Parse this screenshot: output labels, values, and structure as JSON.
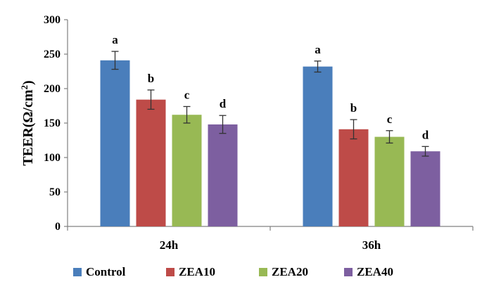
{
  "chart_data": {
    "type": "bar",
    "title": "",
    "xlabel": "",
    "ylabel": "TEER(Ω/cm²)",
    "ylabel_main": "TEER(Ω/cm",
    "ylabel_sup": "2",
    "ylabel_close": ")",
    "ylim": [
      0,
      300
    ],
    "yticks": [
      0,
      50,
      100,
      150,
      200,
      250,
      300
    ],
    "categories": [
      "24h",
      "36h"
    ],
    "series": [
      {
        "name": "Control",
        "color": "#4a7ebb",
        "values": [
          241,
          232
        ],
        "errors": [
          13,
          8
        ],
        "labels": [
          "a",
          "a"
        ]
      },
      {
        "name": "ZEA10",
        "color": "#be4b48",
        "values": [
          184,
          141
        ],
        "errors": [
          14,
          14
        ],
        "labels": [
          "b",
          "b"
        ]
      },
      {
        "name": "ZEA20",
        "color": "#98b954",
        "values": [
          162,
          130
        ],
        "errors": [
          12,
          9
        ],
        "labels": [
          "c",
          "c"
        ]
      },
      {
        "name": "ZEA40",
        "color": "#7d5fa0",
        "values": [
          148,
          109
        ],
        "errors": [
          13,
          7
        ],
        "labels": [
          "d",
          "d"
        ]
      }
    ],
    "legend": "bottom",
    "grid": false
  }
}
